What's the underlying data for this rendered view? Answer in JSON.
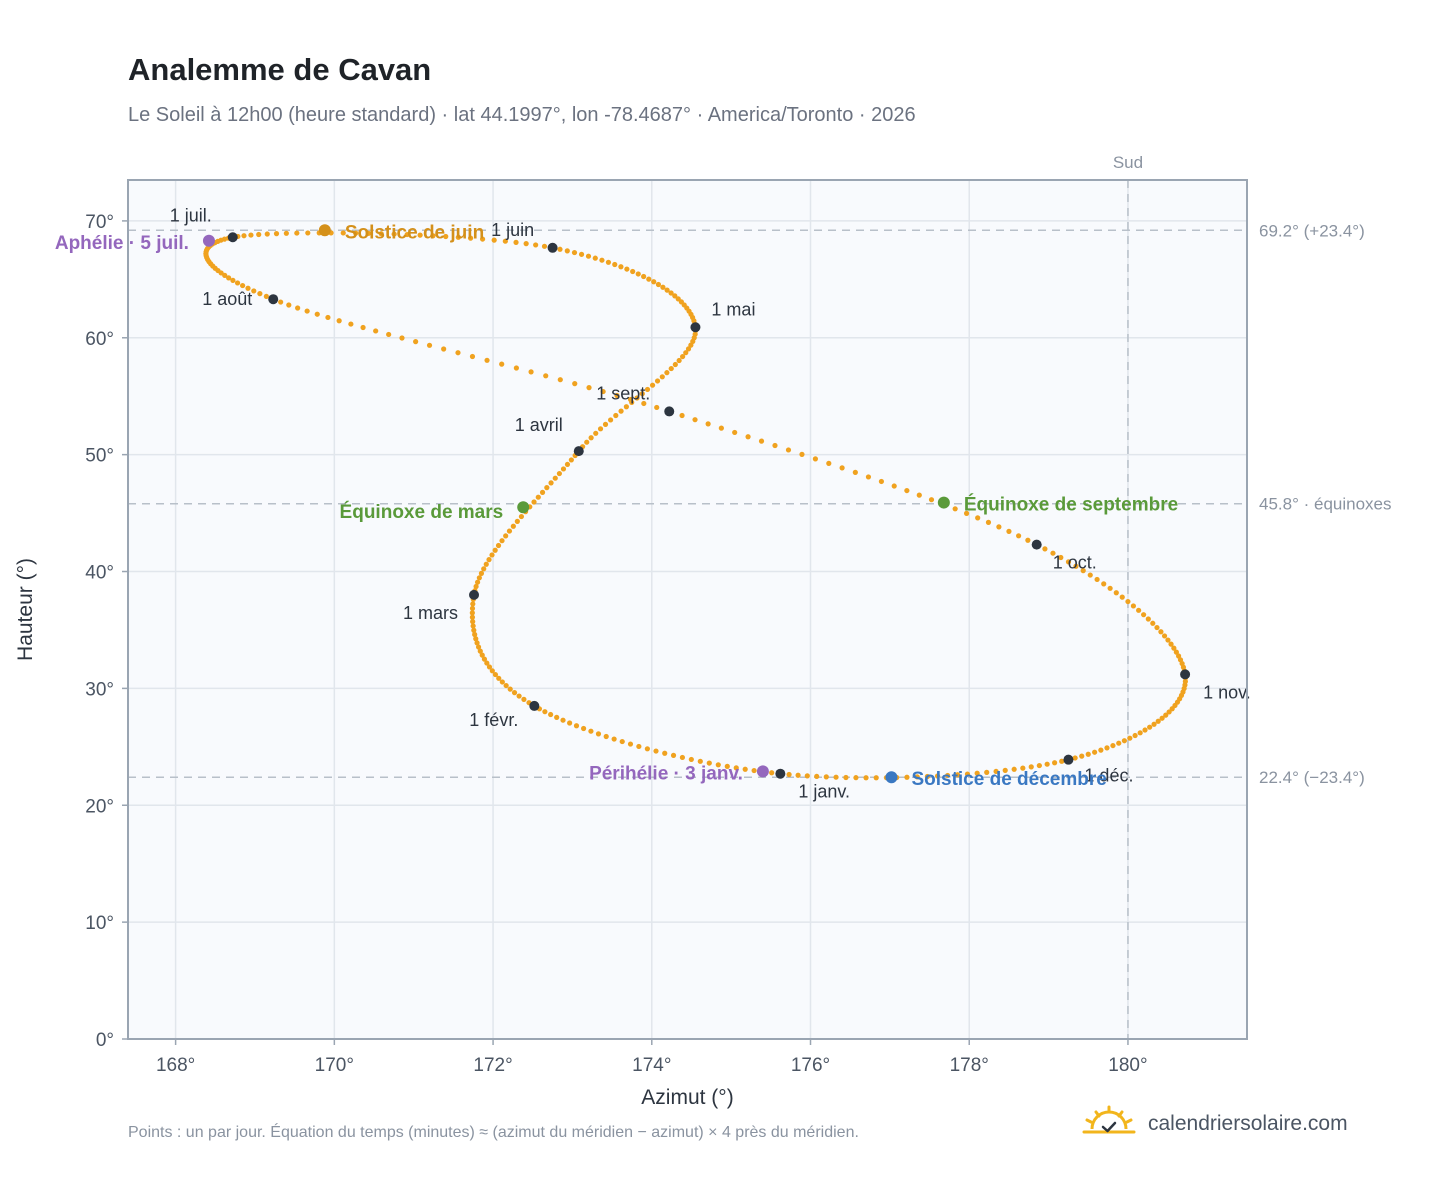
{
  "title": "Analemme de Cavan",
  "subtitle": "Le Soleil à 12h00 (heure standard) · lat 44.1997°, lon -78.4687° · America/Toronto · 2026",
  "footnote": "Points : un par jour. Équation du temps (minutes) ≈ (azimut du méridien − azimut) × 4 près du méridien.",
  "brand": {
    "text": "calendriersolaire.com",
    "icon": "sun-check-icon"
  },
  "colors": {
    "curve": "#f0a21f",
    "month": "#2d3540",
    "solstice_june": "#d4901a",
    "solstice_december": "#3a78c2",
    "equinox": "#5a9a3a",
    "apsis": "#9467bd",
    "plot_bg": "#f8fafd",
    "grid": "#e1e6ec",
    "frame": "#9aa5b2",
    "guide": "#b8c0c9"
  },
  "chart_data": {
    "type": "scatter",
    "title": "Analemme de Cavan",
    "xlabel": "Azimut (°)",
    "ylabel": "Hauteur (°)",
    "xlim": [
      167.4,
      181.5
    ],
    "ylim": [
      0,
      73.5
    ],
    "xticks": [
      168,
      170,
      172,
      174,
      176,
      178,
      180
    ],
    "xtick_labels": [
      "168°",
      "170°",
      "172°",
      "174°",
      "176°",
      "178°",
      "180°"
    ],
    "yticks": [
      0,
      10,
      20,
      30,
      40,
      50,
      60,
      70
    ],
    "ytick_labels": [
      "0°",
      "10°",
      "20°",
      "30°",
      "40°",
      "50°",
      "60°",
      "70°"
    ],
    "grid": true,
    "south_line": {
      "x": 180,
      "label": "Sud"
    },
    "reference_lines": [
      {
        "y": 69.2,
        "label": "69.2° (+23.4°)"
      },
      {
        "y": 45.8,
        "label": "45.8° · équinoxes"
      },
      {
        "y": 22.4,
        "label": "22.4° (−23.4°)"
      }
    ],
    "month_points": [
      {
        "label": "1 janv.",
        "x": 175.62,
        "y": 22.7
      },
      {
        "label": "1 févr.",
        "x": 172.52,
        "y": 28.5
      },
      {
        "label": "1 mars",
        "x": 171.76,
        "y": 38.0
      },
      {
        "label": "1 avril",
        "x": 173.08,
        "y": 50.3
      },
      {
        "label": "1 mai",
        "x": 174.55,
        "y": 60.9
      },
      {
        "label": "1 juin",
        "x": 172.75,
        "y": 67.7
      },
      {
        "label": "1 juil.",
        "x": 168.72,
        "y": 68.6
      },
      {
        "label": "1 août",
        "x": 169.23,
        "y": 63.3
      },
      {
        "label": "1 sept.",
        "x": 174.22,
        "y": 53.7
      },
      {
        "label": "1 oct.",
        "x": 178.85,
        "y": 42.3
      },
      {
        "label": "1 nov.",
        "x": 180.72,
        "y": 31.2
      },
      {
        "label": "1 déc.",
        "x": 179.25,
        "y": 23.9
      }
    ],
    "events": [
      {
        "label": "Solstice de juin",
        "x": 169.88,
        "y": 69.2,
        "kind": "solstice_june"
      },
      {
        "label": "Solstice de décembre",
        "x": 177.02,
        "y": 22.4,
        "kind": "solstice_december"
      },
      {
        "label": "Équinoxe de mars",
        "x": 172.38,
        "y": 45.5,
        "kind": "equinox"
      },
      {
        "label": "Équinoxe de septembre",
        "x": 177.68,
        "y": 45.9,
        "kind": "equinox"
      },
      {
        "label": "Aphélie · 5 juil.",
        "x": 168.42,
        "y": 68.3,
        "kind": "apsis"
      },
      {
        "label": "Périhélie · 3 janv.",
        "x": 175.4,
        "y": 22.9,
        "kind": "apsis"
      }
    ]
  }
}
